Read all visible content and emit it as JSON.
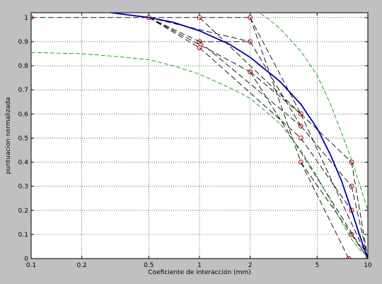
{
  "chart_data": {
    "type": "line",
    "title": "",
    "xlabel": "Coeficiente de interacción (mm)",
    "ylabel": "puntuacion normalizada",
    "x_scale": "log",
    "xlim": [
      0.1,
      10
    ],
    "ylim": [
      0,
      1.02
    ],
    "grid": true,
    "xticks": [
      0.1,
      0.2,
      0.5,
      1,
      2,
      5,
      10
    ],
    "xtick_labels": [
      "0.1",
      "0.2",
      "0.5",
      "1",
      "2",
      "5",
      "10"
    ],
    "yticks": [
      0,
      0.1,
      0.2,
      0.3,
      0.4,
      0.5,
      0.6,
      0.7,
      0.8,
      0.9,
      1
    ],
    "ytick_labels": [
      "0",
      "0.1",
      "0.2",
      "0.3",
      "0.4",
      "0.5",
      "0.6",
      "0.7",
      "0.8",
      "0.9",
      "1"
    ],
    "colors": {
      "axes_bg": "#ffffff",
      "figure_bg": "#c0c0c0",
      "fit": "#0000a8",
      "bounds": "#00a000",
      "segments": "#000000",
      "markers": "#c00000"
    },
    "series": [
      {
        "style": "solid-blue",
        "x": [
          0.1,
          0.2,
          0.3,
          0.5,
          0.7,
          1,
          1.5,
          2,
          3,
          4,
          5,
          6,
          7,
          8,
          9,
          10
        ],
        "y": [
          1.035,
          1.03,
          1.02,
          1.0,
          0.98,
          0.945,
          0.89,
          0.835,
          0.735,
          0.64,
          0.54,
          0.43,
          0.32,
          0.2,
          0.09,
          0.0
        ]
      },
      {
        "style": "dashed-green-upper",
        "x": [
          2,
          2.5,
          3,
          4,
          5,
          6,
          7,
          8,
          9,
          10
        ],
        "y": [
          1.045,
          1.0,
          0.955,
          0.86,
          0.76,
          0.64,
          0.52,
          0.41,
          0.3,
          0.2
        ]
      },
      {
        "style": "dashed-green-lower",
        "x": [
          0.1,
          0.2,
          0.3,
          0.5,
          0.7,
          1,
          1.5,
          2,
          3,
          4,
          5,
          6,
          7,
          8,
          9,
          10
        ],
        "y": [
          0.855,
          0.85,
          0.84,
          0.825,
          0.8,
          0.765,
          0.71,
          0.665,
          0.56,
          0.45,
          0.34,
          0.24,
          0.15,
          0.08,
          0.035,
          0.01
        ]
      }
    ],
    "points": [
      {
        "x": 0.1,
        "y": 1.0
      },
      {
        "x": 0.5,
        "y": 1.0
      },
      {
        "x": 1,
        "y": 1.0
      },
      {
        "x": 2,
        "y": 1.0
      },
      {
        "x": 1,
        "y": 0.9
      },
      {
        "x": 1,
        "y": 0.875
      },
      {
        "x": 2,
        "y": 0.9
      },
      {
        "x": 2,
        "y": 0.775
      },
      {
        "x": 4,
        "y": 0.6
      },
      {
        "x": 4,
        "y": 0.55
      },
      {
        "x": 4,
        "y": 0.5
      },
      {
        "x": 4,
        "y": 0.4
      },
      {
        "x": 8,
        "y": 0.4
      },
      {
        "x": 8,
        "y": 0.3
      },
      {
        "x": 8,
        "y": 0.2
      },
      {
        "x": 8,
        "y": 0.1
      },
      {
        "x": 7.7,
        "y": 0.0
      },
      {
        "x": 10,
        "y": 0.0
      }
    ],
    "segments": [
      [
        {
          "x": 0.1,
          "y": 1.0
        },
        {
          "x": 2,
          "y": 1.0
        }
      ],
      [
        {
          "x": 0.5,
          "y": 1.0
        },
        {
          "x": 1,
          "y": 0.9
        }
      ],
      [
        {
          "x": 0.5,
          "y": 1.0
        },
        {
          "x": 1,
          "y": 0.875
        }
      ],
      [
        {
          "x": 0.5,
          "y": 1.0
        },
        {
          "x": 2,
          "y": 0.9
        }
      ],
      [
        {
          "x": 0.5,
          "y": 1.0
        },
        {
          "x": 2,
          "y": 0.775
        }
      ],
      [
        {
          "x": 1,
          "y": 0.9
        },
        {
          "x": 2,
          "y": 0.9
        }
      ],
      [
        {
          "x": 1,
          "y": 1.0
        },
        {
          "x": 4,
          "y": 0.6
        }
      ],
      [
        {
          "x": 1,
          "y": 0.9
        },
        {
          "x": 4,
          "y": 0.55
        }
      ],
      [
        {
          "x": 1,
          "y": 0.875
        },
        {
          "x": 4,
          "y": 0.5
        }
      ],
      [
        {
          "x": 2,
          "y": 1.0
        },
        {
          "x": 4,
          "y": 0.6
        }
      ],
      [
        {
          "x": 2,
          "y": 1.0
        },
        {
          "x": 4,
          "y": 0.4
        }
      ],
      [
        {
          "x": 2,
          "y": 0.9
        },
        {
          "x": 4,
          "y": 0.55
        }
      ],
      [
        {
          "x": 2,
          "y": 0.775
        },
        {
          "x": 4,
          "y": 0.6
        }
      ],
      [
        {
          "x": 2,
          "y": 0.775
        },
        {
          "x": 10,
          "y": 0.0
        }
      ],
      [
        {
          "x": 4,
          "y": 0.6
        },
        {
          "x": 8,
          "y": 0.4
        }
      ],
      [
        {
          "x": 4,
          "y": 0.55
        },
        {
          "x": 8,
          "y": 0.3
        }
      ],
      [
        {
          "x": 4,
          "y": 0.5
        },
        {
          "x": 8,
          "y": 0.2
        }
      ],
      [
        {
          "x": 4,
          "y": 0.4
        },
        {
          "x": 8,
          "y": 0.1
        }
      ],
      [
        {
          "x": 4,
          "y": 0.4
        },
        {
          "x": 7.7,
          "y": 0.0
        }
      ],
      [
        {
          "x": 4,
          "y": 0.6
        },
        {
          "x": 10,
          "y": 0.0
        }
      ],
      [
        {
          "x": 8,
          "y": 0.4
        },
        {
          "x": 10,
          "y": 0.0
        }
      ],
      [
        {
          "x": 8,
          "y": 0.3
        },
        {
          "x": 10,
          "y": 0.0
        }
      ],
      [
        {
          "x": 8,
          "y": 0.2
        },
        {
          "x": 10,
          "y": 0.0
        }
      ],
      [
        {
          "x": 8,
          "y": 0.1
        },
        {
          "x": 10,
          "y": 0.0
        }
      ],
      [
        {
          "x": 7.7,
          "y": 0.0
        },
        {
          "x": 10,
          "y": 0.0
        }
      ]
    ]
  }
}
